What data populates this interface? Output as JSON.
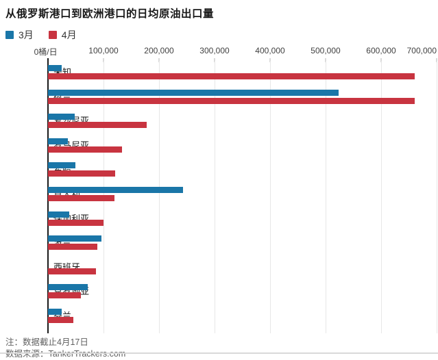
{
  "title": "从俄罗斯港口到欧洲港口的日均原油出口量",
  "legend": [
    {
      "label": "3月",
      "color": "#1a76a8"
    },
    {
      "label": "4月",
      "color": "#c83440"
    }
  ],
  "axis": {
    "zero_label": "0桶/日",
    "tick_labels": [
      "100,000",
      "200,000",
      "300,000",
      "400,000",
      "500,000",
      "600,000",
      "700,000"
    ]
  },
  "footer": {
    "note": "注：数据截止4月17日",
    "source": "数据来源：TankerTrackers.com"
  },
  "colors": {
    "march_blue": "#1a76a8",
    "april_red": "#c83440",
    "gridline": "#e7e7e7",
    "axis_line": "#1a1a1a"
  },
  "chart_data": {
    "type": "bar",
    "orientation": "horizontal",
    "title": "从俄罗斯港口到欧洲港口的日均原油出口量",
    "xlabel": "桶/日",
    "ylabel": "",
    "xlim": [
      0,
      700000
    ],
    "x_tick_interval": 100000,
    "grid": "vertical",
    "legend_position": "top-left",
    "categories": [
      "未知",
      "荷兰",
      "爱沙尼亚",
      "罗马尼亚",
      "希腊",
      "意大利",
      "保加利亚",
      "波兰",
      "西班牙",
      "克罗地亚",
      "芬兰"
    ],
    "series": [
      {
        "name": "3月",
        "color": "#1a76a8",
        "values": [
          24000,
          522000,
          48000,
          36000,
          49000,
          242000,
          38000,
          96000,
          0,
          71000,
          24000
        ]
      },
      {
        "name": "4月",
        "color": "#c83440",
        "values": [
          658000,
          658000,
          177000,
          133000,
          121000,
          119000,
          100000,
          88000,
          86000,
          59000,
          45000
        ]
      }
    ]
  }
}
